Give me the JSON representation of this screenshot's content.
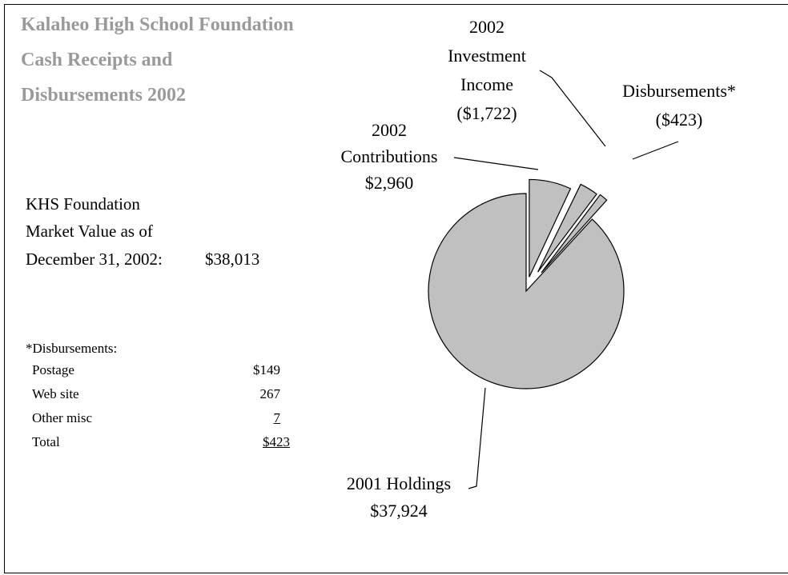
{
  "title": {
    "line1": "Kalaheo High School Foundation",
    "line2": "Cash Receipts and",
    "line3": "Disbursements 2002"
  },
  "market_value": {
    "line1": "KHS Foundation",
    "line2": "Market Value as of",
    "line3": "December 31, 2002:",
    "value": "$38,013"
  },
  "disbursements_note": {
    "heading": "*Disbursements:",
    "rows": [
      {
        "label": "Postage",
        "amount": "$149"
      },
      {
        "label": "Web site",
        "amount": "267"
      },
      {
        "label": "Other misc",
        "amount": "7"
      },
      {
        "label": "Total",
        "amount": "$423"
      }
    ]
  },
  "chart_data": {
    "type": "pie",
    "title": "Kalaheo High School Foundation Cash Receipts and Disbursements 2002",
    "slices": [
      {
        "name": "2001 Holdings",
        "value": 37924,
        "label_lines": [
          "2001 Holdings",
          "$37,924"
        ],
        "exploded": false
      },
      {
        "name": "2002 Contributions",
        "value": 2960,
        "label_lines": [
          "2002",
          "Contributions",
          "$2,960"
        ],
        "exploded": true
      },
      {
        "name": "2002 Investment Income",
        "value": -1722,
        "label_lines": [
          "2002",
          "Investment",
          "Income",
          "($1,722)"
        ],
        "exploded": true
      },
      {
        "name": "Disbursements*",
        "value": -423,
        "label_lines": [
          "Disbursements*",
          "($423)"
        ],
        "exploded": true
      }
    ],
    "slice_color": "#c0c0c0",
    "outline_color": "#000000"
  }
}
